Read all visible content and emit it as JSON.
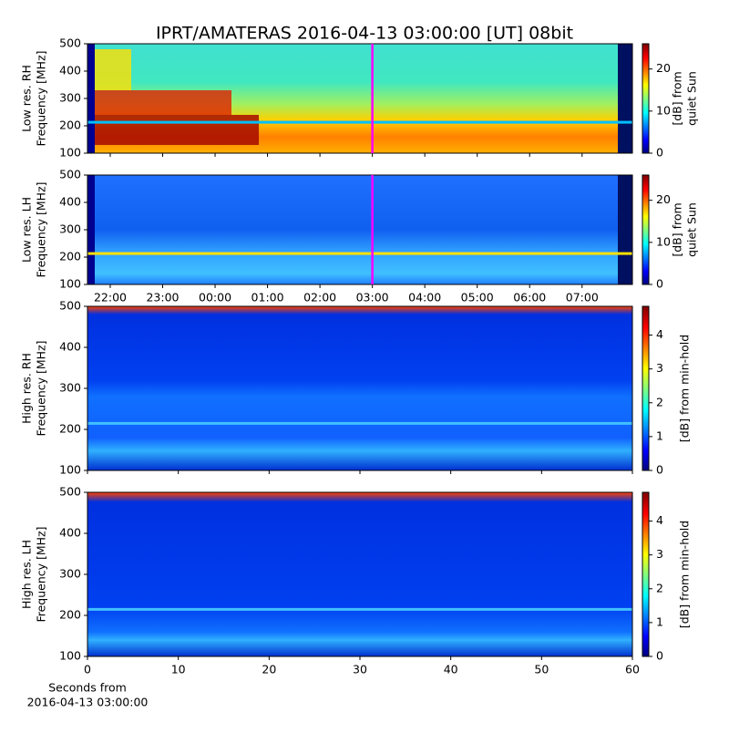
{
  "title": "IPRT/AMATERAS 2016-04-13 03:00:00 [UT]   08bit",
  "chart_data": [
    {
      "type": "heatmap",
      "ylabel": [
        "Low res. RH",
        "Frequency [MHz]"
      ],
      "ylim": [
        100,
        500
      ],
      "yticks": [
        100,
        200,
        300,
        400,
        500
      ],
      "xlim": [
        21.566,
        31.96
      ],
      "xticks": [
        {
          "value": 22,
          "label": "22:00"
        },
        {
          "value": 23,
          "label": "23:00"
        },
        {
          "value": 24,
          "label": "00:00"
        },
        {
          "value": 25,
          "label": "01:00"
        },
        {
          "value": 26,
          "label": "02:00"
        },
        {
          "value": 27,
          "label": "03:00"
        },
        {
          "value": 28,
          "label": "04:00"
        },
        {
          "value": 29,
          "label": "05:00"
        },
        {
          "value": 30,
          "label": "06:00"
        },
        {
          "value": 31,
          "label": "07:00"
        }
      ],
      "show_xtick_labels": false,
      "cursor_x": 27,
      "cursor_color": "#ff00ff",
      "colorbar": {
        "label": [
          "[dB] from",
          "quiet Sun"
        ],
        "lim": [
          0,
          26
        ],
        "ticks": [
          0,
          10,
          20
        ]
      }
    },
    {
      "type": "heatmap",
      "ylabel": [
        "Low res. LH",
        "Frequency [MHz]"
      ],
      "ylim": [
        100,
        500
      ],
      "yticks": [
        100,
        200,
        300,
        400,
        500
      ],
      "xlim": [
        21.566,
        31.96
      ],
      "xticks": [
        {
          "value": 22,
          "label": "22:00"
        },
        {
          "value": 23,
          "label": "23:00"
        },
        {
          "value": 24,
          "label": "00:00"
        },
        {
          "value": 25,
          "label": "01:00"
        },
        {
          "value": 26,
          "label": "02:00"
        },
        {
          "value": 27,
          "label": "03:00"
        },
        {
          "value": 28,
          "label": "04:00"
        },
        {
          "value": 29,
          "label": "05:00"
        },
        {
          "value": 30,
          "label": "06:00"
        },
        {
          "value": 31,
          "label": "07:00"
        }
      ],
      "show_xtick_labels": true,
      "cursor_x": 27,
      "cursor_color": "#ff00ff",
      "colorbar": {
        "label": [
          "[dB] from",
          "quiet Sun"
        ],
        "lim": [
          0,
          26
        ],
        "ticks": [
          0,
          10,
          20
        ]
      }
    },
    {
      "type": "heatmap",
      "ylabel": [
        "High res. RH",
        "Frequency [MHz]"
      ],
      "ylim": [
        100,
        500
      ],
      "yticks": [
        100,
        200,
        300,
        400,
        500
      ],
      "xlim": [
        0,
        60
      ],
      "xticks": [
        0,
        10,
        20,
        30,
        40,
        50,
        60
      ],
      "show_xtick_labels": false,
      "colorbar": {
        "label": [
          "[dB] from min-hold"
        ],
        "lim": [
          0,
          4.85
        ],
        "ticks": [
          0,
          1,
          2,
          3,
          4
        ]
      }
    },
    {
      "type": "heatmap",
      "ylabel": [
        "High res. LH",
        "Frequency [MHz]"
      ],
      "ylim": [
        100,
        500
      ],
      "yticks": [
        100,
        200,
        300,
        400,
        500
      ],
      "xlim": [
        0,
        60
      ],
      "xticks": [
        0,
        10,
        20,
        30,
        40,
        50,
        60
      ],
      "show_xtick_labels": true,
      "xlabel": [
        "Seconds from",
        "2016-04-13 03:00:00"
      ],
      "colorbar": {
        "label": [
          "[dB] from min-hold"
        ],
        "lim": [
          0,
          4.85
        ],
        "ticks": [
          0,
          1,
          2,
          3,
          4
        ]
      }
    }
  ]
}
